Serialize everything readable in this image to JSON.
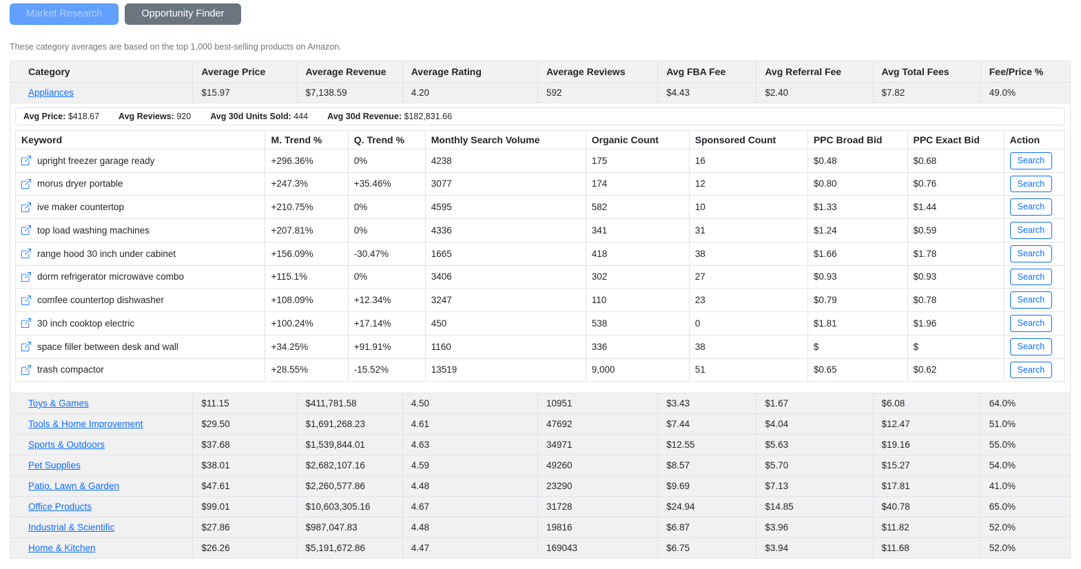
{
  "tabs": {
    "market_research": "Market Research",
    "opportunity_finder": "Opportunity Finder"
  },
  "caption": "These category averages are based on the top 1,000 best-selling products on Amazon.",
  "colors": {
    "link": "#0d6efd",
    "search_button": "#0d6efd",
    "market_research_button_bg": "#62a0fd",
    "opportunity_finder_button_bg": "#6c757d",
    "header_bg": "#f2f2f2",
    "row_bg": "#f1f1f2"
  },
  "table": {
    "columns": [
      "Category",
      "Average Price",
      "Average Revenue",
      "Average Rating",
      "Average Reviews",
      "Avg FBA Fee",
      "Avg Referral Fee",
      "Avg Total Fees",
      "Fee/Price %"
    ],
    "expanded_row": {
      "category": "Appliances",
      "cells": [
        "$15.97",
        "$7,138.59",
        "4.20",
        "592",
        "$4.43",
        "$2.40",
        "$7.82",
        "49.0%"
      ]
    },
    "rows": [
      {
        "category": "Toys & Games",
        "cells": [
          "$11.15",
          "$411,781.58",
          "4.50",
          "10951",
          "$3.43",
          "$1.67",
          "$6.08",
          "64.0%"
        ]
      },
      {
        "category": "Tools & Home Improvement",
        "cells": [
          "$29.50",
          "$1,691,268.23",
          "4.61",
          "47692",
          "$7.44",
          "$4.04",
          "$12.47",
          "51.0%"
        ]
      },
      {
        "category": "Sports & Outdoors",
        "cells": [
          "$37.68",
          "$1,539,844.01",
          "4.63",
          "34971",
          "$12.55",
          "$5.63",
          "$19.16",
          "55.0%"
        ]
      },
      {
        "category": "Pet Supplies",
        "cells": [
          "$38.01",
          "$2,682,107.16",
          "4.59",
          "49260",
          "$8.57",
          "$5.70",
          "$15.27",
          "54.0%"
        ]
      },
      {
        "category": "Patio, Lawn & Garden",
        "cells": [
          "$47.61",
          "$2,260,577.86",
          "4.48",
          "23290",
          "$9.69",
          "$7.13",
          "$17.81",
          "41.0%"
        ]
      },
      {
        "category": "Office Products",
        "cells": [
          "$99.01",
          "$10,603,305.16",
          "4.67",
          "31728",
          "$24.94",
          "$14.85",
          "$40.78",
          "65.0%"
        ]
      },
      {
        "category": "Industrial & Scientific",
        "cells": [
          "$27.86",
          "$987,047.83",
          "4.48",
          "19816",
          "$6.87",
          "$3.96",
          "$11.82",
          "52.0%"
        ]
      },
      {
        "category": "Home & Kitchen",
        "cells": [
          "$26.26",
          "$5,191,672.86",
          "4.47",
          "169043",
          "$6.75",
          "$3.94",
          "$11.68",
          "52.0%"
        ]
      }
    ]
  },
  "detail": {
    "stats": [
      {
        "label": "Avg Price:",
        "value": "$418.67"
      },
      {
        "label": "Avg Reviews:",
        "value": "920"
      },
      {
        "label": "Avg 30d Units Sold:",
        "value": "444"
      },
      {
        "label": "Avg 30d Revenue:",
        "value": "$182,831.66"
      }
    ],
    "keyword_table": {
      "columns": [
        "Keyword",
        "M. Trend %",
        "Q. Trend %",
        "Monthly Search Volume",
        "Organic Count",
        "Sponsored Count",
        "PPC Broad Bid",
        "PPC Exact Bid",
        "Action"
      ],
      "search_label": "Search",
      "rows": [
        {
          "keyword": "upright freezer garage ready",
          "cells": [
            "+296.36%",
            "0%",
            "4238",
            "175",
            "16",
            "$0.48",
            "$0.68"
          ]
        },
        {
          "keyword": "morus dryer portable",
          "cells": [
            "+247.3%",
            "+35.46%",
            "3077",
            "174",
            "12",
            "$0.80",
            "$0.76"
          ]
        },
        {
          "keyword": "ive maker countertop",
          "cells": [
            "+210.75%",
            "0%",
            "4595",
            "582",
            "10",
            "$1.33",
            "$1.44"
          ]
        },
        {
          "keyword": "top load washing machines",
          "cells": [
            "+207.81%",
            "0%",
            "4336",
            "341",
            "31",
            "$1.24",
            "$0.59"
          ]
        },
        {
          "keyword": "range hood 30 inch under cabinet",
          "cells": [
            "+156.09%",
            "-30.47%",
            "1665",
            "418",
            "38",
            "$1.66",
            "$1.78"
          ]
        },
        {
          "keyword": "dorm refrigerator microwave combo",
          "cells": [
            "+115.1%",
            "0%",
            "3406",
            "302",
            "27",
            "$0.93",
            "$0.93"
          ]
        },
        {
          "keyword": "comfee countertop dishwasher",
          "cells": [
            "+108.09%",
            "+12.34%",
            "3247",
            "110",
            "23",
            "$0.79",
            "$0.78"
          ]
        },
        {
          "keyword": "30 inch cooktop electric",
          "cells": [
            "+100.24%",
            "+17.14%",
            "450",
            "538",
            "0",
            "$1.81",
            "$1.96"
          ]
        },
        {
          "keyword": "space filler between desk and wall",
          "cells": [
            "+34.25%",
            "+91.91%",
            "1160",
            "336",
            "38",
            "$",
            "$"
          ]
        },
        {
          "keyword": "trash compactor",
          "cells": [
            "+28.55%",
            "-15.52%",
            "13519",
            "9,000",
            "51",
            "$0.65",
            "$0.62"
          ]
        }
      ]
    }
  }
}
